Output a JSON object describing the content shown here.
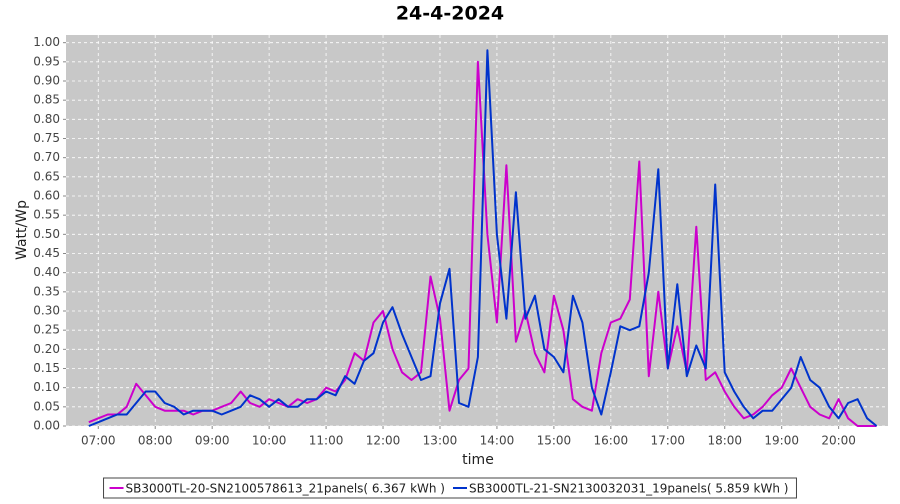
{
  "chart_data": {
    "type": "line",
    "title": "24-4-2024",
    "x_label": "time",
    "y_label": "Watt/Wp",
    "x": [
      "06:50",
      "07:00",
      "07:10",
      "07:20",
      "07:30",
      "07:40",
      "07:50",
      "08:00",
      "08:10",
      "08:20",
      "08:30",
      "08:40",
      "08:50",
      "09:00",
      "09:10",
      "09:20",
      "09:30",
      "09:40",
      "09:50",
      "10:00",
      "10:10",
      "10:20",
      "10:30",
      "10:40",
      "10:50",
      "11:00",
      "11:10",
      "11:20",
      "11:30",
      "11:40",
      "11:50",
      "12:00",
      "12:10",
      "12:20",
      "12:30",
      "12:40",
      "12:50",
      "13:00",
      "13:10",
      "13:20",
      "13:30",
      "13:40",
      "13:50",
      "14:00",
      "14:10",
      "14:20",
      "14:30",
      "14:40",
      "14:50",
      "15:00",
      "15:10",
      "15:20",
      "15:30",
      "15:40",
      "15:50",
      "16:00",
      "16:10",
      "16:20",
      "16:30",
      "16:40",
      "16:50",
      "17:00",
      "17:10",
      "17:20",
      "17:30",
      "17:40",
      "17:50",
      "18:00",
      "18:10",
      "18:20",
      "18:30",
      "18:40",
      "18:50",
      "19:00",
      "19:10",
      "19:20",
      "19:30",
      "19:40",
      "19:50",
      "20:00",
      "20:10",
      "20:20",
      "20:30",
      "20:40"
    ],
    "series": [
      {
        "name": "SB3000TL-20-SN2100578613_21panels( 6.367 kWh )",
        "color": "#cc00cc",
        "values": [
          0.01,
          0.02,
          0.03,
          0.03,
          0.05,
          0.11,
          0.08,
          0.05,
          0.04,
          0.04,
          0.04,
          0.03,
          0.04,
          0.04,
          0.05,
          0.06,
          0.09,
          0.06,
          0.05,
          0.07,
          0.06,
          0.05,
          0.07,
          0.06,
          0.07,
          0.1,
          0.09,
          0.12,
          0.19,
          0.17,
          0.27,
          0.3,
          0.2,
          0.14,
          0.12,
          0.14,
          0.39,
          0.28,
          0.04,
          0.12,
          0.15,
          0.95,
          0.5,
          0.27,
          0.68,
          0.22,
          0.3,
          0.19,
          0.14,
          0.34,
          0.25,
          0.07,
          0.05,
          0.04,
          0.19,
          0.27,
          0.28,
          0.33,
          0.69,
          0.13,
          0.35,
          0.15,
          0.26,
          0.14,
          0.52,
          0.12,
          0.14,
          0.09,
          0.05,
          0.02,
          0.03,
          0.05,
          0.08,
          0.1,
          0.15,
          0.1,
          0.05,
          0.03,
          0.02,
          0.07,
          0.02,
          0.0,
          0.0,
          0.0
        ]
      },
      {
        "name": "SB3000TL-21-SN2130032031_19panels( 5.859 kWh )",
        "color": "#0033cc",
        "values": [
          0.0,
          0.01,
          0.02,
          0.03,
          0.03,
          0.06,
          0.09,
          0.09,
          0.06,
          0.05,
          0.03,
          0.04,
          0.04,
          0.04,
          0.03,
          0.04,
          0.05,
          0.08,
          0.07,
          0.05,
          0.07,
          0.05,
          0.05,
          0.07,
          0.07,
          0.09,
          0.08,
          0.13,
          0.11,
          0.17,
          0.19,
          0.27,
          0.31,
          0.24,
          0.18,
          0.12,
          0.13,
          0.32,
          0.41,
          0.06,
          0.05,
          0.18,
          0.98,
          0.5,
          0.28,
          0.61,
          0.28,
          0.34,
          0.2,
          0.18,
          0.14,
          0.34,
          0.27,
          0.1,
          0.03,
          0.14,
          0.26,
          0.25,
          0.26,
          0.4,
          0.67,
          0.15,
          0.37,
          0.13,
          0.21,
          0.15,
          0.63,
          0.14,
          0.09,
          0.05,
          0.02,
          0.04,
          0.04,
          0.07,
          0.1,
          0.18,
          0.12,
          0.1,
          0.05,
          0.02,
          0.06,
          0.07,
          0.02,
          0.0
        ]
      }
    ],
    "xlim": [
      "06:26",
      "20:52"
    ],
    "xticks": [
      "07:00",
      "08:00",
      "09:00",
      "10:00",
      "11:00",
      "12:00",
      "13:00",
      "14:00",
      "15:00",
      "16:00",
      "17:00",
      "18:00",
      "19:00",
      "20:00"
    ],
    "ylim": [
      0,
      1.02
    ],
    "yticks": [
      {
        "value": 0,
        "label": "0.00"
      },
      {
        "value": 0.05,
        "label": "0.05"
      },
      {
        "value": 0.1,
        "label": "0.10"
      },
      {
        "value": 0.15,
        "label": "0.15"
      },
      {
        "value": 0.2,
        "label": "0.20"
      },
      {
        "value": 0.25,
        "label": "0.25"
      },
      {
        "value": 0.3,
        "label": "0.30"
      },
      {
        "value": 0.35,
        "label": "0.35"
      },
      {
        "value": 0.4,
        "label": "0.40"
      },
      {
        "value": 0.45,
        "label": "0.45"
      },
      {
        "value": 0.5,
        "label": "0.50"
      },
      {
        "value": 0.55,
        "label": "0.55"
      },
      {
        "value": 0.6,
        "label": "0.60"
      },
      {
        "value": 0.65,
        "label": "0.65"
      },
      {
        "value": 0.7,
        "label": "0.70"
      },
      {
        "value": 0.75,
        "label": "0.75"
      },
      {
        "value": 0.8,
        "label": "0.80"
      },
      {
        "value": 0.85,
        "label": "0.85"
      },
      {
        "value": 0.9,
        "label": "0.90"
      },
      {
        "value": 0.95,
        "label": "0.95"
      },
      {
        "value": 1,
        "label": "1.00"
      }
    ],
    "grid": true,
    "legend": "bottom"
  }
}
